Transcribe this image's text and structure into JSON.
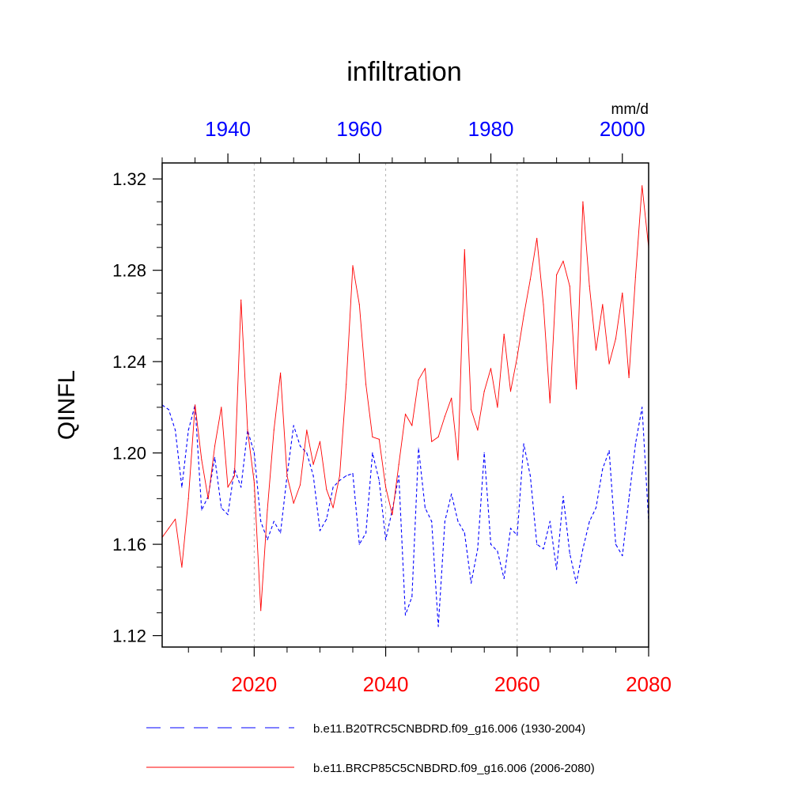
{
  "chart_data": {
    "type": "line",
    "title": "infiltration",
    "ylabel": "QINFL",
    "units": "mm/d",
    "ylim": [
      1.115,
      1.327
    ],
    "yticks": [
      1.12,
      1.16,
      1.2,
      1.24,
      1.28,
      1.32
    ],
    "ytick_labels": [
      "1.12",
      "1.16",
      "1.20",
      "1.24",
      "1.28",
      "1.32"
    ],
    "bottom_axis": {
      "range": [
        2006,
        2080
      ],
      "ticks": [
        2020,
        2040,
        2060,
        2080
      ],
      "tick_labels": [
        "2020",
        "2040",
        "2060",
        "2080"
      ],
      "color": "#ff0000"
    },
    "top_axis": {
      "range": [
        1930,
        2004
      ],
      "ticks": [
        1940,
        1960,
        1980,
        2000
      ],
      "tick_labels": [
        "1940",
        "1960",
        "1980",
        "2000"
      ],
      "color": "#0000ff"
    },
    "gridlines_x": [
      2020,
      2040,
      2060
    ],
    "series": [
      {
        "name": "b.e11.B20TRC5CNBDRD.f09_g16.006 (1930-2004)",
        "axis": "top",
        "color": "#0000ff",
        "style": "dashed",
        "x_start": 1930,
        "values": [
          1.221,
          1.219,
          1.21,
          1.185,
          1.21,
          1.221,
          1.175,
          1.181,
          1.198,
          1.176,
          1.173,
          1.193,
          1.185,
          1.21,
          1.2,
          1.17,
          1.162,
          1.17,
          1.165,
          1.19,
          1.212,
          1.203,
          1.2,
          1.19,
          1.166,
          1.171,
          1.185,
          1.188,
          1.19,
          1.191,
          1.16,
          1.165,
          1.2,
          1.188,
          1.162,
          1.175,
          1.19,
          1.129,
          1.137,
          1.202,
          1.176,
          1.17,
          1.124,
          1.17,
          1.182,
          1.17,
          1.165,
          1.143,
          1.158,
          1.2,
          1.16,
          1.157,
          1.145,
          1.167,
          1.164,
          1.204,
          1.19,
          1.16,
          1.158,
          1.17,
          1.149,
          1.181,
          1.156,
          1.143,
          1.158,
          1.17,
          1.176,
          1.193,
          1.201,
          1.16,
          1.155,
          1.18,
          1.204,
          1.22,
          1.17
        ]
      },
      {
        "name": "b.e11.BRCP85C5CNBDRD.f09_g16.006 (2006-2080)",
        "axis": "bottom",
        "color": "#ff0000",
        "style": "solid",
        "x_start": 2006,
        "values": [
          1.163,
          1.167,
          1.171,
          1.15,
          1.18,
          1.221,
          1.197,
          1.18,
          1.203,
          1.22,
          1.185,
          1.19,
          1.267,
          1.21,
          1.187,
          1.131,
          1.175,
          1.21,
          1.235,
          1.19,
          1.178,
          1.186,
          1.21,
          1.195,
          1.205,
          1.184,
          1.176,
          1.19,
          1.23,
          1.282,
          1.265,
          1.23,
          1.207,
          1.206,
          1.185,
          1.173,
          1.195,
          1.217,
          1.212,
          1.232,
          1.237,
          1.205,
          1.207,
          1.216,
          1.224,
          1.197,
          1.289,
          1.219,
          1.21,
          1.227,
          1.237,
          1.22,
          1.252,
          1.227,
          1.242,
          1.26,
          1.276,
          1.294,
          1.265,
          1.222,
          1.278,
          1.284,
          1.273,
          1.228,
          1.31,
          1.273,
          1.245,
          1.265,
          1.239,
          1.25,
          1.27,
          1.233,
          1.277,
          1.317,
          1.29
        ]
      }
    ]
  }
}
